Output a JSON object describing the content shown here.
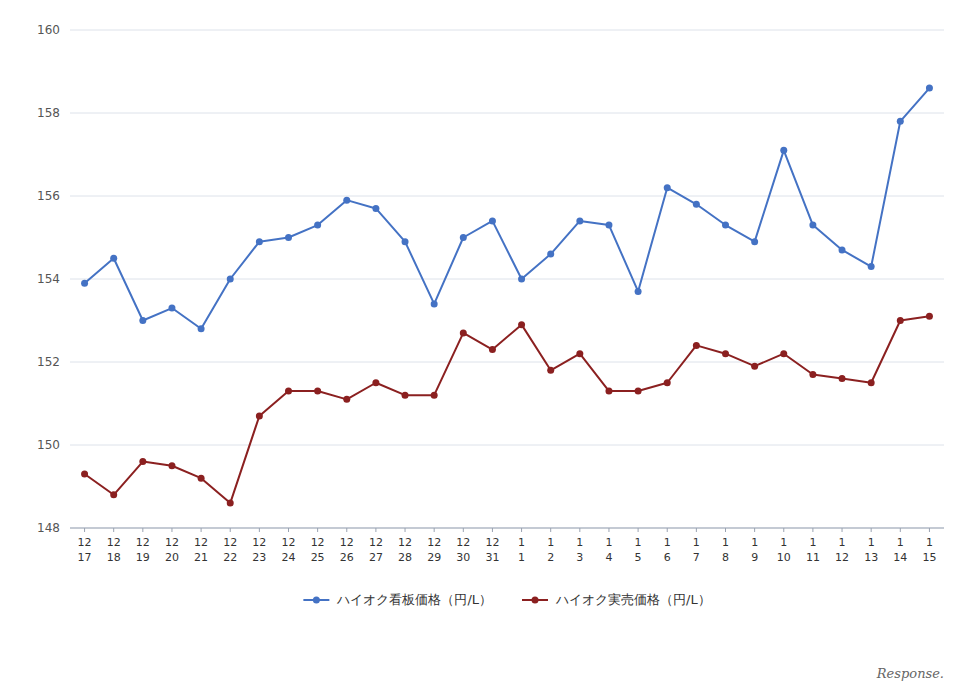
{
  "chart_data": {
    "type": "line",
    "categories": [
      [
        "12",
        "17"
      ],
      [
        "12",
        "18"
      ],
      [
        "12",
        "19"
      ],
      [
        "12",
        "20"
      ],
      [
        "12",
        "21"
      ],
      [
        "12",
        "22"
      ],
      [
        "12",
        "23"
      ],
      [
        "12",
        "24"
      ],
      [
        "12",
        "25"
      ],
      [
        "12",
        "26"
      ],
      [
        "12",
        "27"
      ],
      [
        "12",
        "28"
      ],
      [
        "12",
        "29"
      ],
      [
        "12",
        "30"
      ],
      [
        "12",
        "31"
      ],
      [
        "1",
        "1"
      ],
      [
        "1",
        "2"
      ],
      [
        "1",
        "3"
      ],
      [
        "1",
        "4"
      ],
      [
        "1",
        "5"
      ],
      [
        "1",
        "6"
      ],
      [
        "1",
        "7"
      ],
      [
        "1",
        "8"
      ],
      [
        "1",
        "9"
      ],
      [
        "1",
        "10"
      ],
      [
        "1",
        "11"
      ],
      [
        "1",
        "12"
      ],
      [
        "1",
        "13"
      ],
      [
        "1",
        "14"
      ],
      [
        "1",
        "15"
      ]
    ],
    "series": [
      {
        "name": "ハイオク看板価格（円/L）",
        "color": "#4472C4",
        "values": [
          153.9,
          154.5,
          153.0,
          153.3,
          152.8,
          154.0,
          154.9,
          155.0,
          155.3,
          155.9,
          155.7,
          154.9,
          153.4,
          155.0,
          155.4,
          154.0,
          154.6,
          155.4,
          155.3,
          153.7,
          156.2,
          155.8,
          155.3,
          154.9,
          157.1,
          155.3,
          154.7,
          154.3,
          157.8,
          158.6
        ]
      },
      {
        "name": "ハイオク実売価格（円/L）",
        "color": "#8B2020",
        "values": [
          149.3,
          148.8,
          149.6,
          149.5,
          149.2,
          148.6,
          150.7,
          151.3,
          151.3,
          151.1,
          151.5,
          151.2,
          151.2,
          152.7,
          152.3,
          152.9,
          151.8,
          152.2,
          151.3,
          151.3,
          151.5,
          152.4,
          152.2,
          151.9,
          152.2,
          151.7,
          151.6,
          151.5,
          153.0,
          153.1
        ]
      }
    ],
    "ylim": [
      148,
      160
    ],
    "yticks": [
      148,
      150,
      152,
      154,
      156,
      158,
      160
    ],
    "grid": true,
    "legend": "bottom",
    "marker": "circle",
    "annotations": [
      "Response."
    ]
  }
}
